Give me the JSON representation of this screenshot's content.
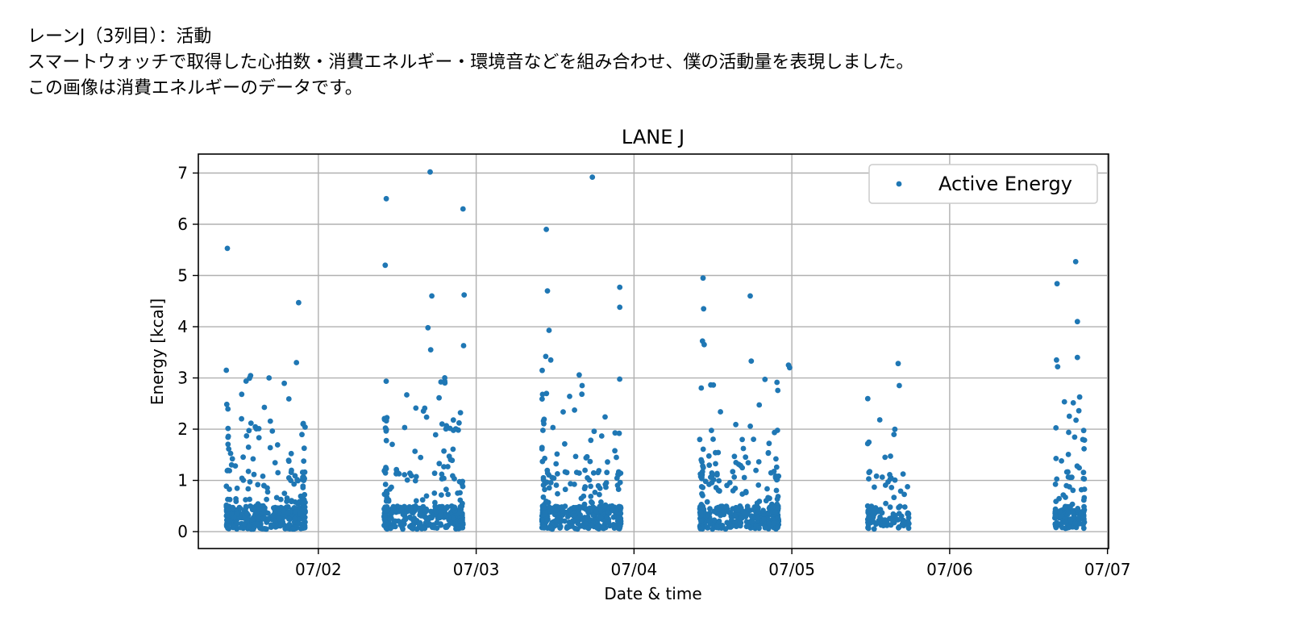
{
  "caption": {
    "line1": "レーンJ（3列目）：活動",
    "line2": "スマートウォッチで取得した心拍数・消費エネルギー・環境音などを組み合わせ、僕の活動量を表現しました。",
    "line3": "この画像は消費エネルギーのデータです。"
  },
  "chart_data": {
    "type": "scatter",
    "title": "LANE J",
    "xlabel": "Date & time",
    "ylabel": "Energy [kcal]",
    "x_ticks": [
      "07/02",
      "07/03",
      "07/04",
      "07/05",
      "07/06",
      "07/07"
    ],
    "y_ticks": [
      "0",
      "1",
      "2",
      "3",
      "4",
      "5",
      "6",
      "7"
    ],
    "xlim": [
      "07/01 05:45",
      "07/07 00:10"
    ],
    "ylim": [
      -0.33,
      7.37
    ],
    "grid": true,
    "legend_position": "top-right",
    "color": "#1f77b4",
    "series": [
      {
        "name": "Active Energy",
        "clusters": [
          {
            "start": "07/01 10:00",
            "end": "07/01 22:00",
            "count": 430
          },
          {
            "start": "07/02 10:00",
            "end": "07/02 22:00",
            "count": 390
          },
          {
            "start": "07/03 10:00",
            "end": "07/03 22:00",
            "count": 420
          },
          {
            "start": "07/04 10:00",
            "end": "07/04 22:00",
            "count": 410
          },
          {
            "start": "07/05 11:30",
            "end": "07/05 17:50",
            "count": 110
          },
          {
            "start": "07/06 16:00",
            "end": "07/06 20:30",
            "count": 150
          }
        ],
        "points": [
          [
            "07/01 10:10",
            5.53
          ],
          [
            "07/01 21:00",
            4.47
          ],
          [
            "07/01 10:00",
            3.15
          ],
          [
            "07/01 20:40",
            3.3
          ],
          [
            "07/01 16:30",
            3.0
          ],
          [
            "07/02 10:20",
            6.5
          ],
          [
            "07/02 10:10",
            5.2
          ],
          [
            "07/02 17:00",
            7.02
          ],
          [
            "07/02 22:00",
            6.3
          ],
          [
            "07/02 17:15",
            4.6
          ],
          [
            "07/02 22:10",
            4.62
          ],
          [
            "07/02 16:40",
            3.98
          ],
          [
            "07/02 17:05",
            3.55
          ],
          [
            "07/02 22:05",
            3.63
          ],
          [
            "07/03 10:40",
            5.9
          ],
          [
            "07/03 10:50",
            4.7
          ],
          [
            "07/03 17:40",
            6.92
          ],
          [
            "07/03 21:50",
            4.77
          ],
          [
            "07/03 21:50",
            4.38
          ],
          [
            "07/03 11:05",
            3.93
          ],
          [
            "07/03 10:35",
            3.42
          ],
          [
            "07/03 11:20",
            3.35
          ],
          [
            "07/04 10:30",
            4.95
          ],
          [
            "07/04 10:35",
            4.35
          ],
          [
            "07/04 10:25",
            3.72
          ],
          [
            "07/04 10:40",
            3.65
          ],
          [
            "07/04 17:40",
            4.6
          ],
          [
            "07/04 17:50",
            3.33
          ],
          [
            "07/04 23:30",
            3.25
          ],
          [
            "07/04 23:40",
            3.2
          ],
          [
            "07/05 16:10",
            3.28
          ],
          [
            "07/05 16:20",
            2.85
          ],
          [
            "07/06 16:20",
            4.84
          ],
          [
            "07/06 19:10",
            5.27
          ],
          [
            "07/06 19:25",
            4.1
          ],
          [
            "07/06 19:25",
            3.4
          ],
          [
            "07/06 16:15",
            3.35
          ],
          [
            "07/06 16:25",
            3.22
          ]
        ]
      }
    ]
  }
}
